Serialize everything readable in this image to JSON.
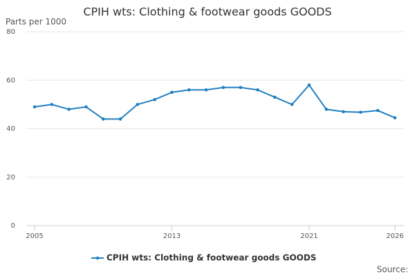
{
  "chart_data": {
    "type": "line",
    "title": "CPIH wts: Clothing & footwear goods GOODS",
    "y_label": "Parts per 1000",
    "source": "Source:",
    "x": [
      2005,
      2006,
      2007,
      2008,
      2009,
      2010,
      2011,
      2012,
      2013,
      2014,
      2015,
      2016,
      2017,
      2018,
      2019,
      2020,
      2021,
      2022,
      2023,
      2024,
      2025,
      2026
    ],
    "series": [
      {
        "name": "CPIH wts: Clothing & footwear goods GOODS",
        "color": "#1f7fc1",
        "values": [
          49,
          50,
          48,
          49,
          44,
          44,
          50,
          52,
          55,
          56,
          56,
          57,
          57,
          56,
          53,
          50,
          58,
          48,
          47,
          46.8,
          47.5,
          44.5
        ]
      }
    ],
    "xlim": [
      2005,
      2026
    ],
    "xticks": [
      2005,
      2013,
      2021,
      2026
    ],
    "ylim": [
      0,
      80
    ],
    "yticks": [
      0,
      20,
      40,
      60,
      80
    ],
    "grid": true
  }
}
